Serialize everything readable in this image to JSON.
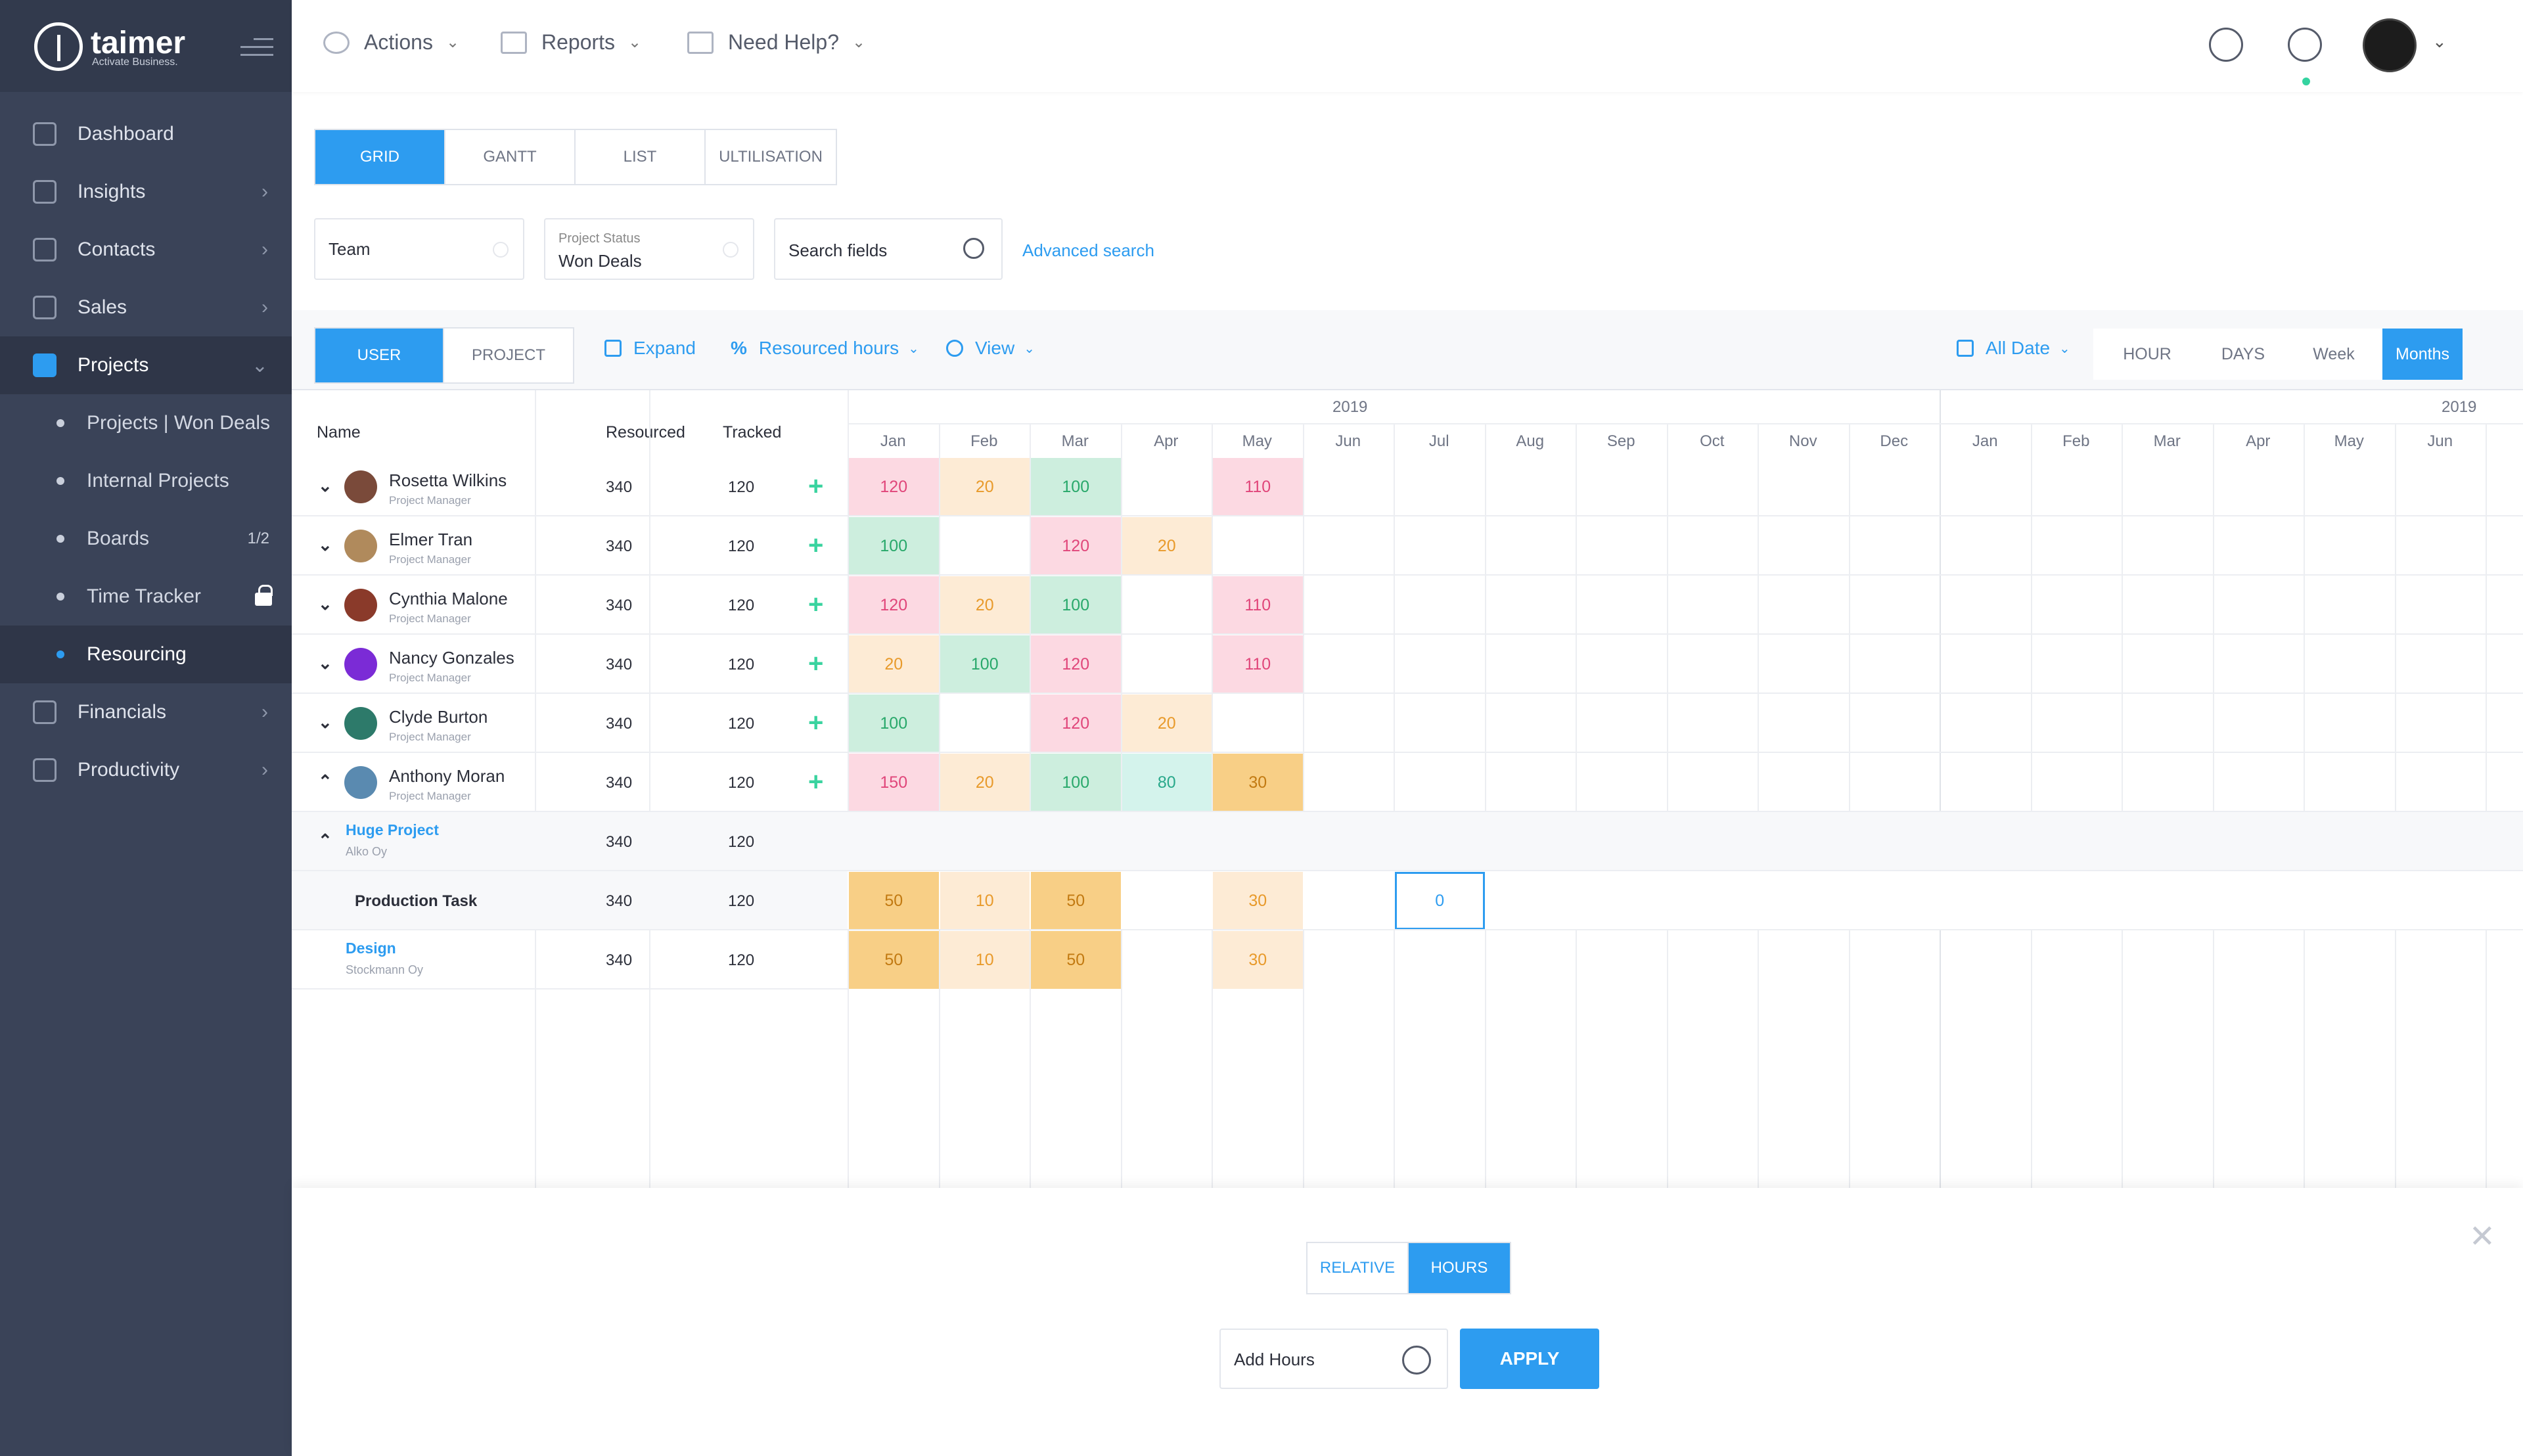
{
  "brand": {
    "name": "taimer",
    "tagline": "Activate Business."
  },
  "sidebar": {
    "items": [
      {
        "label": "Dashboard",
        "has_chevron": false
      },
      {
        "label": "Insights",
        "has_chevron": true
      },
      {
        "label": "Contacts",
        "has_chevron": true
      },
      {
        "label": "Sales",
        "has_chevron": true
      },
      {
        "label": "Projects",
        "has_chevron": true,
        "active": true
      },
      {
        "label": "Financials",
        "has_chevron": true
      },
      {
        "label": "Productivity",
        "has_chevron": true
      }
    ],
    "project_sub": [
      {
        "label": "Projects | Won Deals",
        "badge": ""
      },
      {
        "label": "Internal Projects",
        "badge": ""
      },
      {
        "label": "Boards",
        "badge": "1/2"
      },
      {
        "label": "Time Tracker",
        "badge": "",
        "locked": true
      },
      {
        "label": "Resourcing",
        "badge": "",
        "active": true
      }
    ]
  },
  "topbar": {
    "actions": "Actions",
    "reports": "Reports",
    "help": "Need Help?"
  },
  "view_tabs": [
    "GRID",
    "GANTT",
    "LIST",
    "ULTILISATION"
  ],
  "filters": {
    "team": "Team",
    "status_label": "Project Status",
    "status_value": "Won Deals",
    "search_placeholder": "Search fields",
    "advanced": "Advanced search"
  },
  "toolbar": {
    "mode_tabs": [
      "USER",
      "PROJECT"
    ],
    "expand": "Expand",
    "resourced_hours": "Resourced hours",
    "view": "View",
    "all_date": "All Date",
    "time_units": [
      "HOUR",
      "DAYS",
      "Week",
      "Months"
    ]
  },
  "grid": {
    "columns": {
      "name": "Name",
      "resourced": "Resourced",
      "tracked": "Tracked"
    },
    "years": [
      "2019",
      "2019"
    ],
    "months": [
      "Jan",
      "Feb",
      "Mar",
      "Apr",
      "May",
      "Jun",
      "Jul",
      "Aug",
      "Sep",
      "Oct",
      "Nov",
      "Dec",
      "Jan",
      "Feb",
      "Mar",
      "Apr",
      "May",
      "Jun"
    ],
    "users": [
      {
        "name": "Rosetta Wilkins",
        "role": "Project Manager",
        "resourced": "340",
        "tracked": "120",
        "expanded": false,
        "avatar_color": "#7a4a3a",
        "cells": [
          {
            "m": 0,
            "v": "120",
            "c": "pink"
          },
          {
            "m": 1,
            "v": "20",
            "c": "peach"
          },
          {
            "m": 2,
            "v": "100",
            "c": "green"
          },
          {
            "m": 4,
            "v": "110",
            "c": "pink"
          }
        ]
      },
      {
        "name": "Elmer Tran",
        "role": "Project Manager",
        "resourced": "340",
        "tracked": "120",
        "expanded": false,
        "avatar_color": "#b08a5c",
        "cells": [
          {
            "m": 0,
            "v": "100",
            "c": "green"
          },
          {
            "m": 2,
            "v": "120",
            "c": "pink"
          },
          {
            "m": 3,
            "v": "20",
            "c": "peach"
          }
        ]
      },
      {
        "name": "Cynthia Malone",
        "role": "Project Manager",
        "resourced": "340",
        "tracked": "120",
        "expanded": false,
        "avatar_color": "#8a3a2a",
        "cells": [
          {
            "m": 0,
            "v": "120",
            "c": "pink"
          },
          {
            "m": 1,
            "v": "20",
            "c": "peach"
          },
          {
            "m": 2,
            "v": "100",
            "c": "green"
          },
          {
            "m": 4,
            "v": "110",
            "c": "pink"
          }
        ]
      },
      {
        "name": "Nancy Gonzales",
        "role": "Project Manager",
        "resourced": "340",
        "tracked": "120",
        "expanded": false,
        "avatar_color": "#7b2bd6",
        "cells": [
          {
            "m": 0,
            "v": "20",
            "c": "peach"
          },
          {
            "m": 1,
            "v": "100",
            "c": "green"
          },
          {
            "m": 2,
            "v": "120",
            "c": "pink"
          },
          {
            "m": 4,
            "v": "110",
            "c": "pink"
          }
        ]
      },
      {
        "name": "Clyde Burton",
        "role": "Project Manager",
        "resourced": "340",
        "tracked": "120",
        "expanded": false,
        "avatar_color": "#2d7a6a",
        "cells": [
          {
            "m": 0,
            "v": "100",
            "c": "green"
          },
          {
            "m": 2,
            "v": "120",
            "c": "pink"
          },
          {
            "m": 3,
            "v": "20",
            "c": "peach"
          }
        ]
      },
      {
        "name": "Anthony Moran",
        "role": "Project Manager",
        "resourced": "340",
        "tracked": "120",
        "expanded": true,
        "avatar_color": "#5a8ab0",
        "cells": [
          {
            "m": 0,
            "v": "150",
            "c": "pink"
          },
          {
            "m": 1,
            "v": "20",
            "c": "peach"
          },
          {
            "m": 2,
            "v": "100",
            "c": "green"
          },
          {
            "m": 3,
            "v": "80",
            "c": "teal"
          },
          {
            "m": 4,
            "v": "30",
            "c": "orange"
          }
        ]
      }
    ],
    "project": {
      "name": "Huge Project",
      "client": "Alko Oy",
      "resourced": "340",
      "tracked": "120"
    },
    "task": {
      "name": "Production Task",
      "resourced": "340",
      "tracked": "120",
      "cells": [
        {
          "m": 0,
          "v": "50",
          "c": "orange"
        },
        {
          "m": 1,
          "v": "10",
          "c": "peach"
        },
        {
          "m": 2,
          "v": "50",
          "c": "orange"
        },
        {
          "m": 4,
          "v": "30",
          "c": "peach"
        },
        {
          "m": 6,
          "v": "0",
          "c": "sel"
        }
      ]
    },
    "design": {
      "name": "Design",
      "client": "Stockmann Oy",
      "resourced": "340",
      "tracked": "120",
      "cells": [
        {
          "m": 0,
          "v": "50",
          "c": "orange"
        },
        {
          "m": 1,
          "v": "10",
          "c": "peach"
        },
        {
          "m": 2,
          "v": "50",
          "c": "orange"
        },
        {
          "m": 4,
          "v": "30",
          "c": "peach"
        }
      ]
    }
  },
  "bottom_panel": {
    "toggle": [
      "RELATIVE",
      "HOURS"
    ],
    "add_hours_placeholder": "Add Hours",
    "apply": "APPLY"
  },
  "colors": {
    "accent": "#2d9cf0",
    "sidebar": "#3a4358",
    "plus": "#3ad39f"
  }
}
